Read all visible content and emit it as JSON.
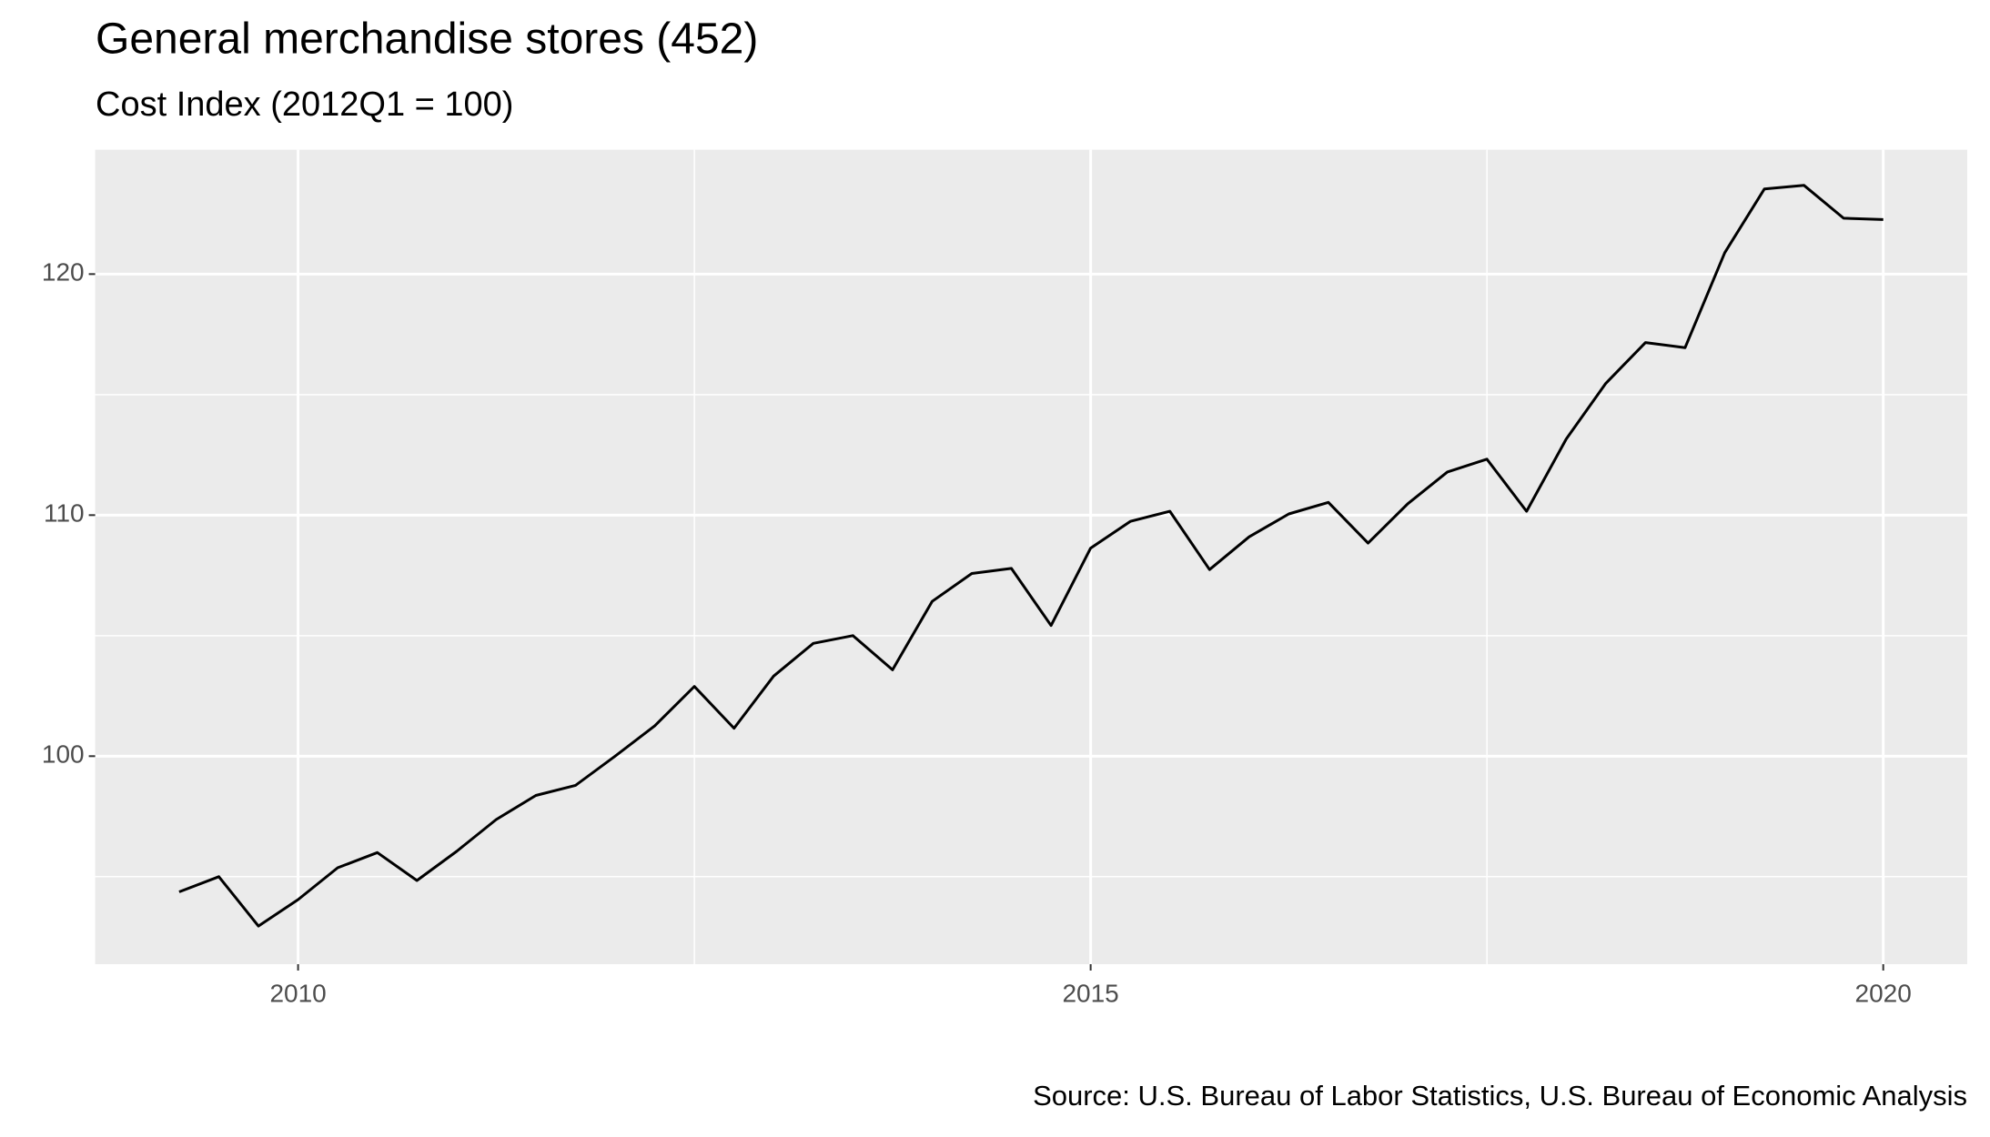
{
  "chart_data": {
    "type": "line",
    "title": "General merchandise stores (452)",
    "subtitle": "Cost Index (2012Q1 = 100)",
    "caption": "Source: U.S. Bureau of Labor Statistics, U.S. Bureau of Economic Analysis",
    "x": [
      2009.25,
      2009.5,
      2009.75,
      2010,
      2010.25,
      2010.5,
      2010.75,
      2011,
      2011.25,
      2011.5,
      2011.75,
      2012,
      2012.25,
      2012.5,
      2012.75,
      2013,
      2013.25,
      2013.5,
      2013.75,
      2014,
      2014.25,
      2014.5,
      2014.75,
      2015,
      2015.25,
      2015.5,
      2015.75,
      2016,
      2016.25,
      2016.5,
      2016.75,
      2017,
      2017.25,
      2017.5,
      2017.75,
      2018,
      2018.25,
      2018.5,
      2018.75,
      2019,
      2019.25,
      2019.5,
      2019.75,
      2020
    ],
    "series": [
      {
        "color": "#000000",
        "values": [
          94.37,
          95.0,
          92.95,
          94.05,
          95.37,
          96.0,
          94.84,
          96.05,
          97.37,
          98.37,
          98.79,
          100,
          101.26,
          102.89,
          101.16,
          103.32,
          104.68,
          105.0,
          103.58,
          106.42,
          107.58,
          107.79,
          105.42,
          108.63,
          109.74,
          110.16,
          107.74,
          109.1,
          110.05,
          110.53,
          108.84,
          110.47,
          111.79,
          112.32,
          110.16,
          113.16,
          115.47,
          117.16,
          116.95,
          120.89,
          123.53,
          123.68,
          122.32,
          122.26
        ]
      }
    ],
    "xlim": [
      2008.72,
      2020.53
    ],
    "ylim": [
      91.37,
      125.16
    ],
    "xticks": [
      2010,
      2015,
      2020
    ],
    "yticks": [
      100,
      110,
      120
    ],
    "x_minor_grid": [
      2012.5,
      2017.5
    ],
    "y_minor_grid": [
      95,
      105,
      115
    ],
    "grid": true,
    "panel_color": "#ebebeb"
  }
}
